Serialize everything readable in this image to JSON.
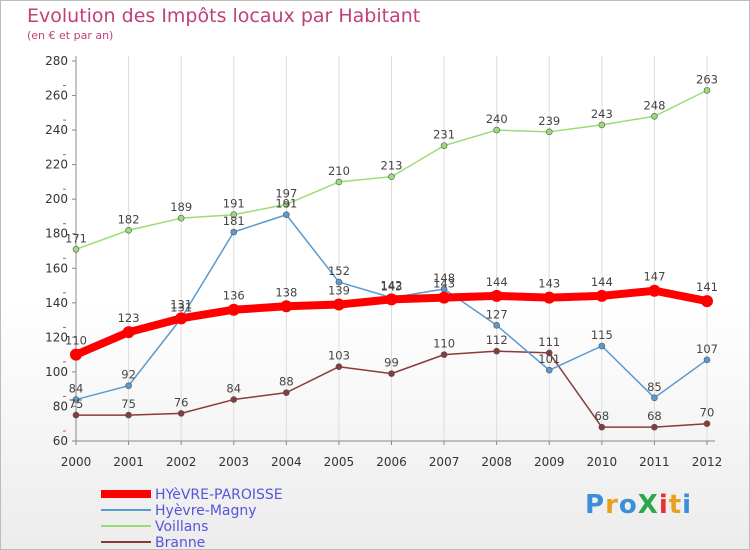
{
  "title": "Evolution des Impôts locaux par Habitant",
  "subtitle": "(en € et par an)",
  "logo": {
    "text": "ProXiti",
    "colors": [
      "#3a8fd8",
      "#e8a020",
      "#3a8fd8",
      "#2aa84a",
      "#e83030",
      "#e8a020",
      "#3a8fd8"
    ]
  },
  "chart_data": {
    "type": "line",
    "x": [
      "2000",
      "2001",
      "2002",
      "2003",
      "2004",
      "2005",
      "2006",
      "2007",
      "2008",
      "2009",
      "2010",
      "2011",
      "2012"
    ],
    "ylim": [
      60,
      280
    ],
    "yticks": [
      60,
      80,
      100,
      120,
      140,
      160,
      180,
      200,
      220,
      240,
      260,
      280
    ],
    "grid": "vertical",
    "legend_position": "bottom-left",
    "series": [
      {
        "name": "HYèVRE-PAROISSE",
        "color": "#ff0000",
        "values": [
          110,
          123,
          131,
          136,
          138,
          139,
          142,
          143,
          144,
          143,
          144,
          147,
          141
        ]
      },
      {
        "name": "Hyèvre-Magny",
        "color": "#5a9ad0",
        "values": [
          84,
          92,
          131,
          181,
          191,
          152,
          143,
          148,
          127,
          101,
          115,
          85,
          107
        ]
      },
      {
        "name": "Voillans",
        "color": "#99dd77",
        "values": [
          171,
          182,
          189,
          191,
          197,
          210,
          213,
          231,
          240,
          239,
          243,
          248,
          263
        ]
      },
      {
        "name": "Branne",
        "color": "#8b3a3a",
        "values": [
          75,
          75,
          76,
          84,
          88,
          103,
          99,
          110,
          112,
          111,
          68,
          68,
          70
        ]
      }
    ]
  }
}
